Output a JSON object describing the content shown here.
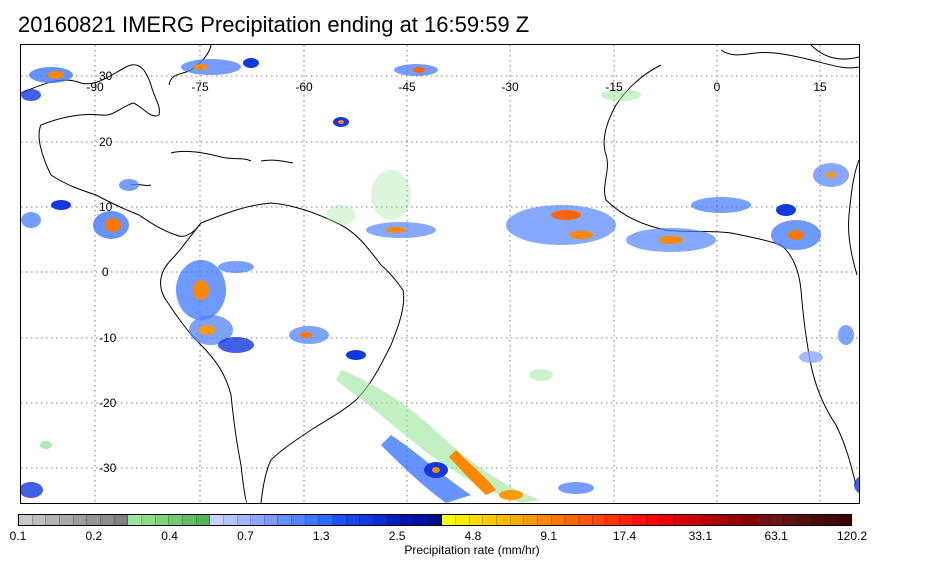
{
  "title": "20160821 IMERG Precipitation ending at 16:59:59 Z",
  "map": {
    "lon_labels": [
      "-90",
      "-75",
      "-60",
      "-45",
      "-30",
      "-15",
      "0",
      "15"
    ],
    "lat_labels": [
      "30",
      "20",
      "10",
      "0",
      "-10",
      "-20",
      "-30"
    ],
    "gridline_style": "dotted",
    "coastline_color": "#000000"
  },
  "colorbar": {
    "caption": "Precipitation rate (mm/hr)",
    "tick_labels": [
      "0.1",
      "0.2",
      "0.4",
      "0.7",
      "1.3",
      "2.5",
      "4.8",
      "9.1",
      "17.4",
      "33.1",
      "63.1",
      "120.2"
    ],
    "colors": [
      "#c8c8c8",
      "#bdbdbd",
      "#b2b2b2",
      "#a8a8a8",
      "#9e9e9e",
      "#949494",
      "#8a8a8a",
      "#808080",
      "#9ae69a",
      "#8cdc8c",
      "#7ed27e",
      "#70c870",
      "#62be62",
      "#54b454",
      "#c8d2ff",
      "#b4c4ff",
      "#a0b6ff",
      "#8ca8ff",
      "#7a9cff",
      "#6690ff",
      "#5284ff",
      "#3e78ff",
      "#2a6cff",
      "#1e50ff",
      "#1844f0",
      "#1238e0",
      "#0c2cd0",
      "#0620c0",
      "#0014b0",
      "#0010a0",
      "#000c90",
      "#ffff00",
      "#ffee00",
      "#ffdd00",
      "#ffcc00",
      "#ffbb00",
      "#ffaa00",
      "#ff9900",
      "#ff8800",
      "#ff7700",
      "#ff6600",
      "#ff5500",
      "#ff4400",
      "#ff3300",
      "#ff2200",
      "#ff1100",
      "#ff0000",
      "#ee0000",
      "#dd0000",
      "#cc0000",
      "#bb0000",
      "#aa0000",
      "#990000",
      "#880000",
      "#771010",
      "#6a1414",
      "#601414",
      "#561010",
      "#4c0c0c",
      "#420808",
      "#380404"
    ]
  }
}
